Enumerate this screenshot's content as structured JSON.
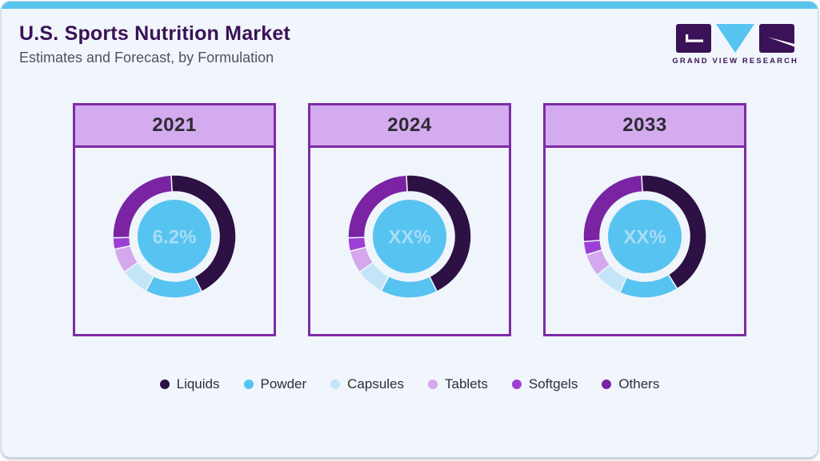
{
  "header": {
    "title": "U.S. Sports Nutrition Market",
    "subtitle": "Estimates and Forecast, by Formulation",
    "logo_text": "GRAND VIEW RESEARCH"
  },
  "colors": {
    "top_bar": "#58c4ee",
    "panel_background": "#f0f6fb",
    "card_border": "#7d2ba6",
    "card_header_fill": "#d3abee",
    "donut_center_circle": "#57c3f0",
    "donut_center_text": "#a7ddf6",
    "title_text": "#3b1257",
    "logo_dark": "#3b1257",
    "logo_blue": "#56c3f0"
  },
  "chart_data": {
    "type": "pie",
    "subtype": "donut",
    "title": "U.S. Sports Nutrition Market",
    "subtitle": "Estimates and Forecast, by Formulation",
    "legend_position": "bottom",
    "legend_items": [
      {
        "label": "Liquids",
        "color": "#2d1044"
      },
      {
        "label": "Powder",
        "color": "#57c3f0"
      },
      {
        "label": "Capsules",
        "color": "#c4e5f8"
      },
      {
        "label": "Tablets",
        "color": "#d5a7ec"
      },
      {
        "label": "Softgels",
        "color": "#9d3fd6"
      },
      {
        "label": "Others",
        "color": "#7a24a4"
      }
    ],
    "charts": [
      {
        "year": "2021",
        "center_label": "6.2%",
        "values_pct_estimated": [
          43.5,
          15.0,
          7.5,
          6.5,
          3.0,
          24.5
        ]
      },
      {
        "year": "2024",
        "center_label": "XX%",
        "values_pct_estimated": [
          43.5,
          15.0,
          7.5,
          6.0,
          3.5,
          24.5
        ]
      },
      {
        "year": "2033",
        "center_label": "XX%",
        "values_pct_estimated": [
          42.0,
          15.5,
          7.5,
          6.0,
          3.5,
          25.5
        ]
      }
    ]
  }
}
